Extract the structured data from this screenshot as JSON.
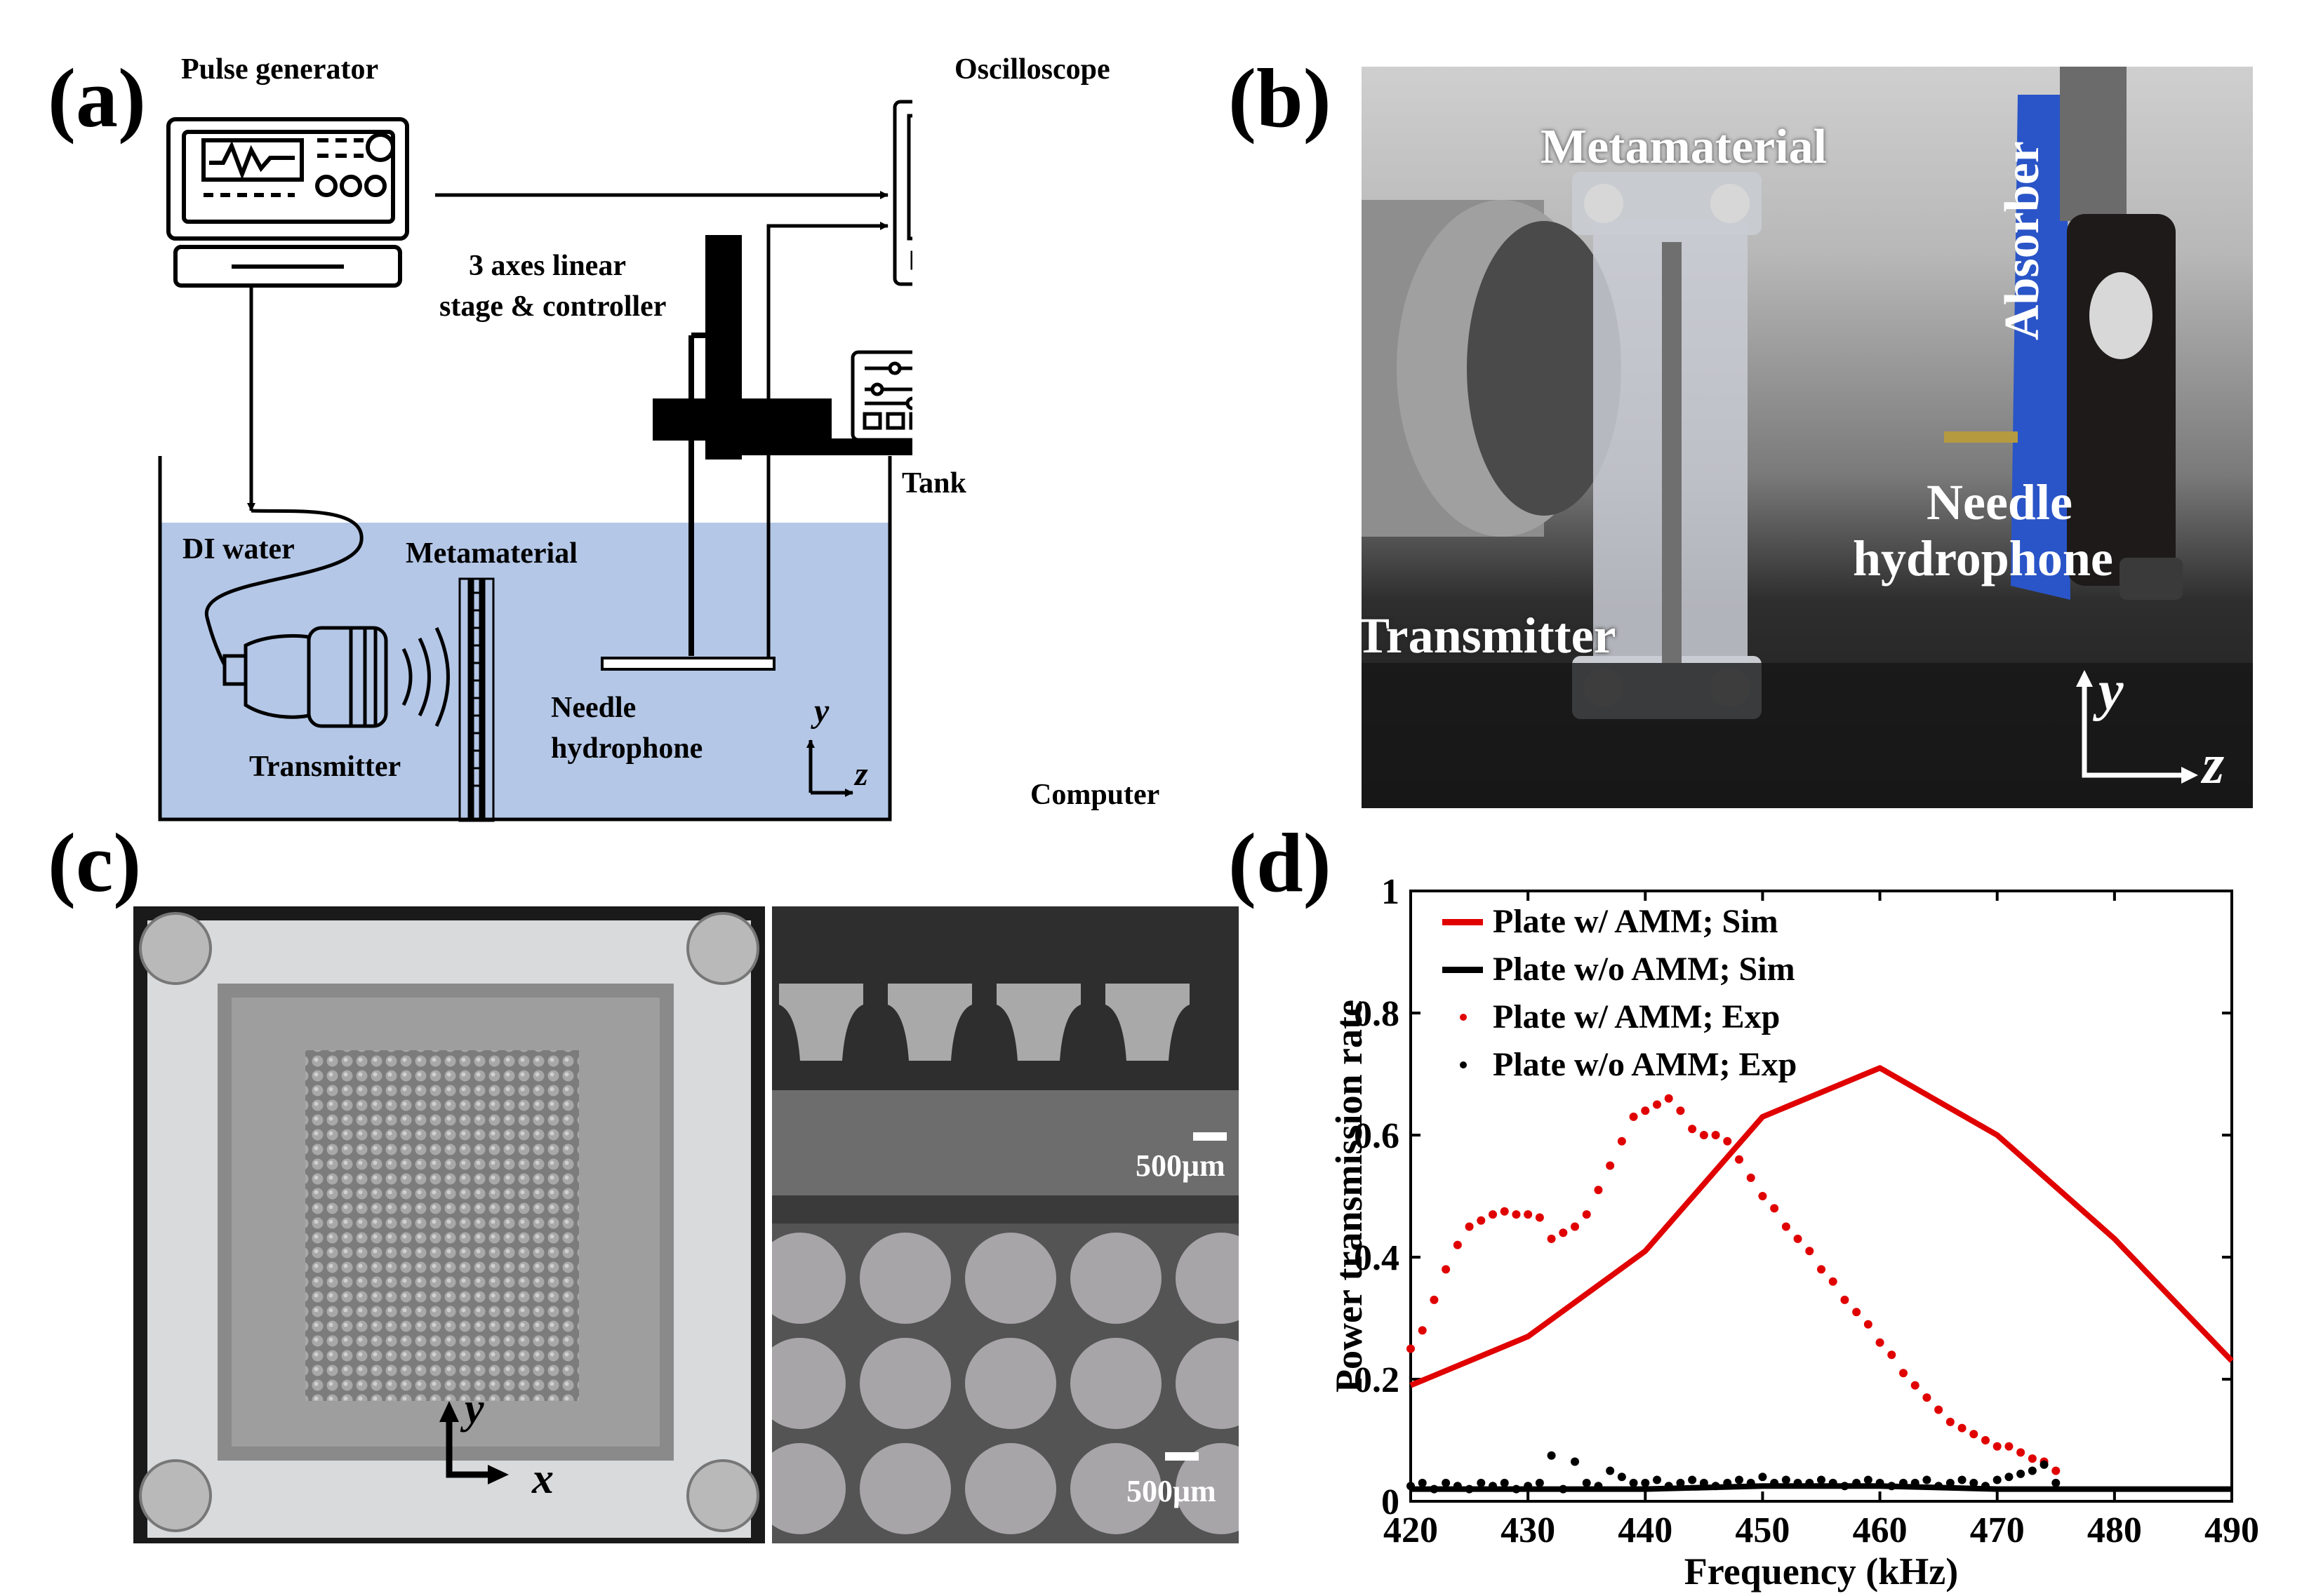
{
  "panels": {
    "a": {
      "label": "(a)",
      "pulse_generator": "Pulse generator",
      "oscilloscope": "Oscilloscope",
      "stage_line1": "3 axes linear",
      "stage_line2": "stage & controller",
      "tank": "Tank",
      "di_water": "DI water",
      "metamaterial": "Metamaterial",
      "transmitter": "Transmitter",
      "needle_line1": "Needle",
      "needle_line2": "hydrophone",
      "computer": "Computer",
      "axis_y": "y",
      "axis_z": "z",
      "water_color": "#b4c7e7"
    },
    "b": {
      "label": "(b)",
      "metamaterial": "Metamaterial",
      "absorber": "Absorber",
      "needle_line1": "Needle",
      "needle_line2": "hydrophone",
      "transmitter": "Transmitter",
      "axis_y": "y",
      "axis_z": "z"
    },
    "c": {
      "label": "(c)",
      "axis_y": "y",
      "axis_x": "x",
      "scale_top": "500μm",
      "scale_bottom": "500μm"
    },
    "d": {
      "label": "(d)"
    }
  },
  "chart_data": {
    "type": "line",
    "xlabel": "Frequency (kHz)",
    "ylabel": "Power transmission rate",
    "xlim": [
      420,
      490
    ],
    "ylim": [
      0,
      1
    ],
    "xticks": [
      420,
      430,
      440,
      450,
      460,
      470,
      480,
      490
    ],
    "yticks": [
      0,
      0.2,
      0.4,
      0.6,
      0.8,
      1
    ],
    "ytick_labels": [
      "0",
      "0.2",
      "0.4",
      "0.6",
      "0.8",
      "1"
    ],
    "legend_position": "top-left",
    "series": [
      {
        "name": "Plate w/ AMM; Sim",
        "style": "line",
        "color": "#e00000",
        "x": [
          420,
          430,
          440,
          450,
          460,
          470,
          480,
          490
        ],
        "y": [
          0.19,
          0.27,
          0.41,
          0.63,
          0.71,
          0.6,
          0.43,
          0.23
        ]
      },
      {
        "name": "Plate w/o AMM; Sim",
        "style": "line",
        "color": "#000000",
        "x": [
          420,
          430,
          440,
          450,
          460,
          470,
          475,
          480,
          490
        ],
        "y": [
          0.02,
          0.02,
          0.02,
          0.025,
          0.025,
          0.02,
          0.02,
          0.02,
          0.02
        ]
      },
      {
        "name": "Plate w/ AMM; Exp",
        "style": "dots",
        "color": "#e00000",
        "x": [
          420,
          421,
          422,
          423,
          424,
          425,
          426,
          427,
          428,
          429,
          430,
          431,
          432,
          433,
          434,
          435,
          436,
          437,
          438,
          439,
          440,
          441,
          442,
          443,
          444,
          445,
          446,
          447,
          448,
          449,
          450,
          451,
          452,
          453,
          454,
          455,
          456,
          457,
          458,
          459,
          460,
          461,
          462,
          463,
          464,
          465,
          466,
          467,
          468,
          469,
          470,
          471,
          472,
          473,
          474,
          475
        ],
        "y": [
          0.25,
          0.28,
          0.33,
          0.38,
          0.42,
          0.45,
          0.46,
          0.47,
          0.475,
          0.47,
          0.47,
          0.465,
          0.43,
          0.44,
          0.45,
          0.47,
          0.51,
          0.55,
          0.59,
          0.63,
          0.64,
          0.65,
          0.66,
          0.64,
          0.61,
          0.6,
          0.6,
          0.59,
          0.56,
          0.53,
          0.5,
          0.48,
          0.45,
          0.43,
          0.41,
          0.38,
          0.36,
          0.33,
          0.31,
          0.29,
          0.26,
          0.24,
          0.21,
          0.19,
          0.17,
          0.15,
          0.13,
          0.12,
          0.11,
          0.1,
          0.09,
          0.09,
          0.08,
          0.07,
          0.065,
          0.05
        ]
      },
      {
        "name": "Plate w/o AMM; Exp",
        "style": "dots",
        "color": "#000000",
        "x": [
          420,
          421,
          422,
          423,
          424,
          425,
          426,
          427,
          428,
          429,
          430,
          431,
          432,
          433,
          434,
          435,
          436,
          437,
          438,
          439,
          440,
          441,
          442,
          443,
          444,
          445,
          446,
          447,
          448,
          449,
          450,
          451,
          452,
          453,
          454,
          455,
          456,
          457,
          458,
          459,
          460,
          461,
          462,
          463,
          464,
          465,
          466,
          467,
          468,
          469,
          470,
          471,
          472,
          473,
          474,
          475
        ],
        "y": [
          0.025,
          0.03,
          0.02,
          0.03,
          0.025,
          0.02,
          0.03,
          0.025,
          0.03,
          0.02,
          0.025,
          0.03,
          0.075,
          0.02,
          0.065,
          0.03,
          0.025,
          0.05,
          0.04,
          0.03,
          0.03,
          0.035,
          0.025,
          0.03,
          0.035,
          0.03,
          0.025,
          0.03,
          0.035,
          0.03,
          0.04,
          0.03,
          0.035,
          0.03,
          0.03,
          0.035,
          0.03,
          0.025,
          0.03,
          0.035,
          0.03,
          0.025,
          0.03,
          0.03,
          0.035,
          0.025,
          0.03,
          0.035,
          0.03,
          0.025,
          0.035,
          0.04,
          0.045,
          0.05,
          0.06,
          0.03
        ]
      }
    ]
  }
}
